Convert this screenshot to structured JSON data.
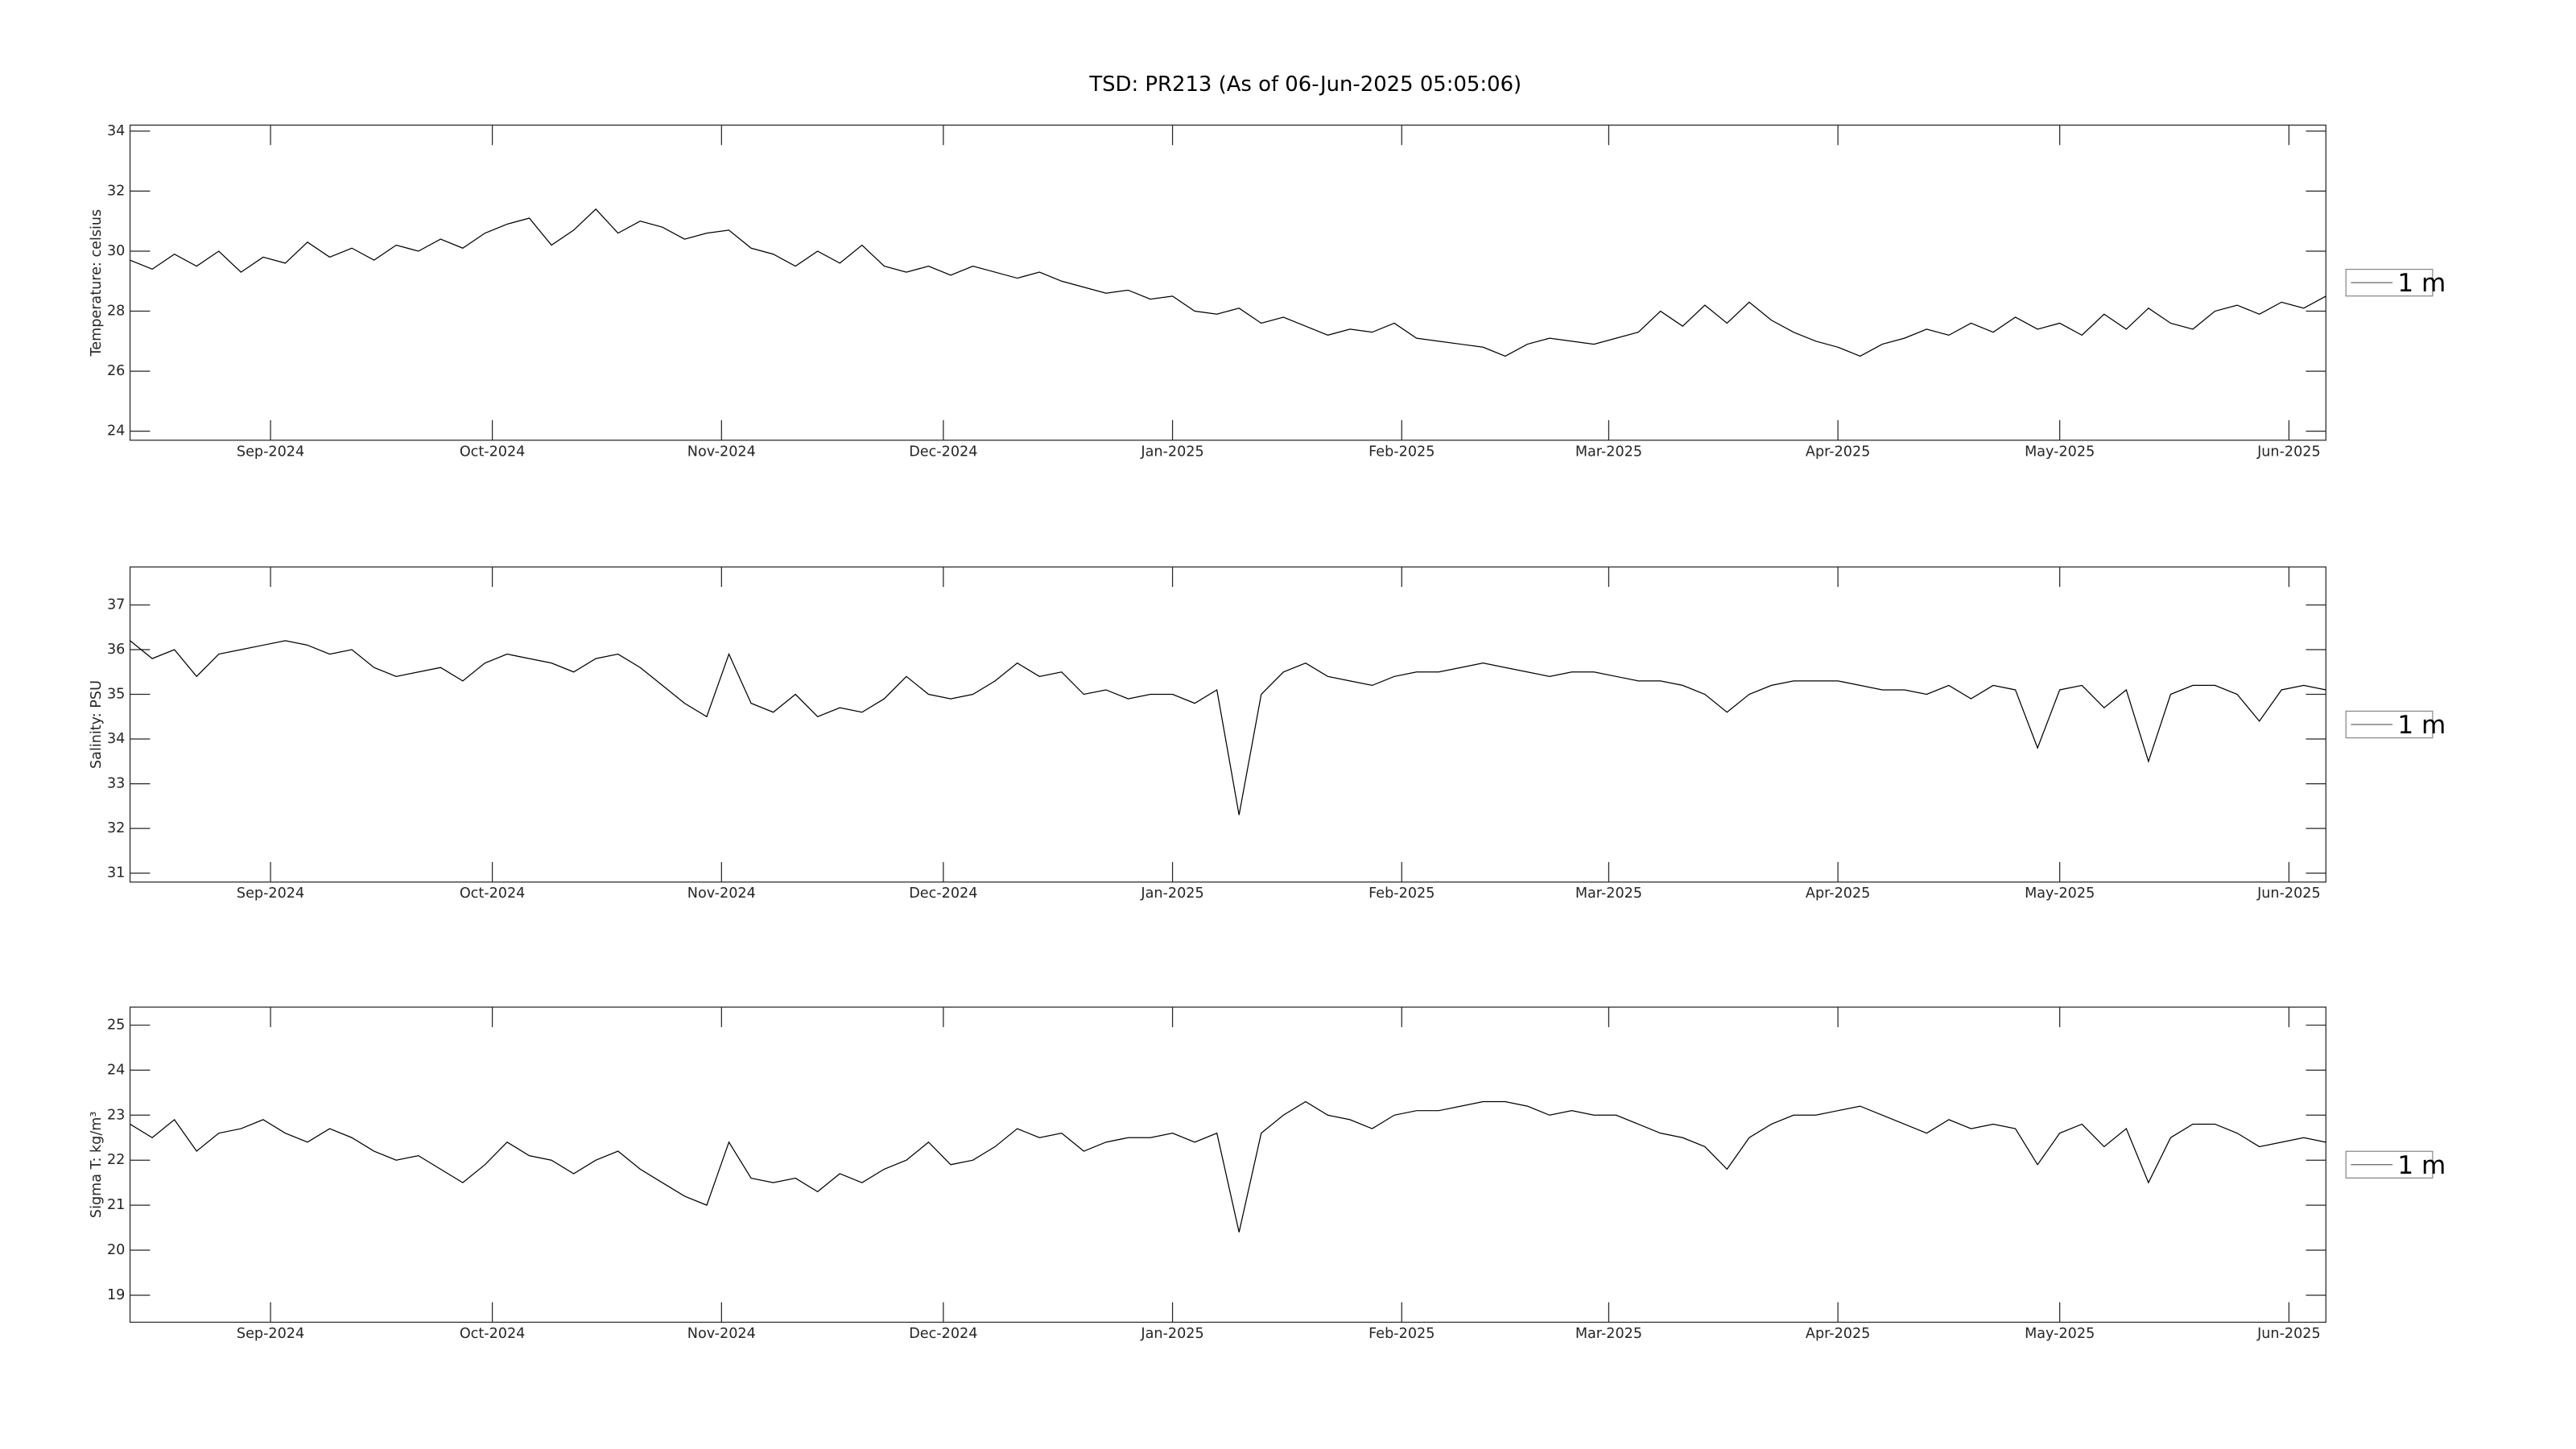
{
  "title": "TSD: PR213 (As of 06-Jun-2025 05:05:06)",
  "chart_data": [
    {
      "type": "line",
      "ylabel": "Temperature:  celsius",
      "xlim": [
        "2024-08-13",
        "2025-06-06"
      ],
      "xticks": [
        {
          "value": "2024-09-01",
          "label": "Sep-2024"
        },
        {
          "value": "2024-10-01",
          "label": "Oct-2024"
        },
        {
          "value": "2024-11-01",
          "label": "Nov-2024"
        },
        {
          "value": "2024-12-01",
          "label": "Dec-2024"
        },
        {
          "value": "2025-01-01",
          "label": "Jan-2025"
        },
        {
          "value": "2025-02-01",
          "label": "Feb-2025"
        },
        {
          "value": "2025-03-01",
          "label": "Mar-2025"
        },
        {
          "value": "2025-04-01",
          "label": "Apr-2025"
        },
        {
          "value": "2025-05-01",
          "label": "May-2025"
        },
        {
          "value": "2025-06-01",
          "label": "Jun-2025"
        }
      ],
      "ylim": [
        23.7,
        34.2
      ],
      "yticks": [
        24,
        26,
        28,
        30,
        32,
        34
      ],
      "grid": false,
      "legend": "right",
      "series": [
        {
          "name": "1 m",
          "color": "#000000",
          "values": [
            29.7,
            29.4,
            29.9,
            29.5,
            30.0,
            29.3,
            29.8,
            29.6,
            30.3,
            29.8,
            30.1,
            29.7,
            30.2,
            30.0,
            30.4,
            30.1,
            30.6,
            30.9,
            31.1,
            30.2,
            30.7,
            31.4,
            30.6,
            31.0,
            30.8,
            30.4,
            30.6,
            30.7,
            30.1,
            29.9,
            29.5,
            30.0,
            29.6,
            30.2,
            29.5,
            29.3,
            29.5,
            29.2,
            29.5,
            29.3,
            29.1,
            29.3,
            29.0,
            28.8,
            28.6,
            28.7,
            28.4,
            28.5,
            28.0,
            27.9,
            28.1,
            27.6,
            27.8,
            27.5,
            27.2,
            27.4,
            27.3,
            27.6,
            27.1,
            27.0,
            26.9,
            26.8,
            26.5,
            26.9,
            27.1,
            27.0,
            26.9,
            27.1,
            27.3,
            28.0,
            27.5,
            28.2,
            27.6,
            28.3,
            27.7,
            27.3,
            27.0,
            26.8,
            26.5,
            26.9,
            27.1,
            27.4,
            27.2,
            27.6,
            27.3,
            27.8,
            27.4,
            27.6,
            27.2,
            27.9,
            27.4,
            28.1,
            27.6,
            27.4,
            28.0,
            28.2,
            27.9,
            28.3,
            28.1,
            28.5
          ]
        }
      ]
    },
    {
      "type": "line",
      "ylabel": "Salinity:  PSU",
      "xlim": [
        "2024-08-13",
        "2025-06-06"
      ],
      "xticks": [
        {
          "value": "2024-09-01",
          "label": "Sep-2024"
        },
        {
          "value": "2024-10-01",
          "label": "Oct-2024"
        },
        {
          "value": "2024-11-01",
          "label": "Nov-2024"
        },
        {
          "value": "2024-12-01",
          "label": "Dec-2024"
        },
        {
          "value": "2025-01-01",
          "label": "Jan-2025"
        },
        {
          "value": "2025-02-01",
          "label": "Feb-2025"
        },
        {
          "value": "2025-03-01",
          "label": "Mar-2025"
        },
        {
          "value": "2025-04-01",
          "label": "Apr-2025"
        },
        {
          "value": "2025-05-01",
          "label": "May-2025"
        },
        {
          "value": "2025-06-01",
          "label": "Jun-2025"
        }
      ],
      "ylim": [
        30.8,
        37.85
      ],
      "yticks": [
        31,
        32,
        33,
        34,
        35,
        36,
        37
      ],
      "grid": false,
      "legend": "right",
      "series": [
        {
          "name": "1 m",
          "color": "#000000",
          "values": [
            36.2,
            35.8,
            36.0,
            35.4,
            35.9,
            36.0,
            36.1,
            36.2,
            36.1,
            35.9,
            36.0,
            35.6,
            35.4,
            35.5,
            35.6,
            35.3,
            35.7,
            35.9,
            35.8,
            35.7,
            35.5,
            35.8,
            35.9,
            35.6,
            35.2,
            34.8,
            34.5,
            35.9,
            34.8,
            34.6,
            35.0,
            34.5,
            34.7,
            34.6,
            34.9,
            35.4,
            35.0,
            34.9,
            35.0,
            35.3,
            35.7,
            35.4,
            35.5,
            35.0,
            35.1,
            34.9,
            35.0,
            35.0,
            34.8,
            35.1,
            32.3,
            35.0,
            35.5,
            35.7,
            35.4,
            35.3,
            35.2,
            35.4,
            35.5,
            35.5,
            35.6,
            35.7,
            35.6,
            35.5,
            35.4,
            35.5,
            35.5,
            35.4,
            35.3,
            35.3,
            35.2,
            35.0,
            34.6,
            35.0,
            35.2,
            35.3,
            35.3,
            35.3,
            35.2,
            35.1,
            35.1,
            35.0,
            35.2,
            34.9,
            35.2,
            35.1,
            33.8,
            35.1,
            35.2,
            34.7,
            35.1,
            33.5,
            35.0,
            35.2,
            35.2,
            35.0,
            34.4,
            35.1,
            35.2,
            35.1
          ]
        }
      ]
    },
    {
      "type": "line",
      "ylabel": "Sigma T:  kg/m³",
      "xlim": [
        "2024-08-13",
        "2025-06-06"
      ],
      "xticks": [
        {
          "value": "2024-09-01",
          "label": "Sep-2024"
        },
        {
          "value": "2024-10-01",
          "label": "Oct-2024"
        },
        {
          "value": "2024-11-01",
          "label": "Nov-2024"
        },
        {
          "value": "2024-12-01",
          "label": "Dec-2024"
        },
        {
          "value": "2025-01-01",
          "label": "Jan-2025"
        },
        {
          "value": "2025-02-01",
          "label": "Feb-2025"
        },
        {
          "value": "2025-03-01",
          "label": "Mar-2025"
        },
        {
          "value": "2025-04-01",
          "label": "Apr-2025"
        },
        {
          "value": "2025-05-01",
          "label": "May-2025"
        },
        {
          "value": "2025-06-01",
          "label": "Jun-2025"
        }
      ],
      "ylim": [
        18.4,
        25.4
      ],
      "yticks": [
        19,
        20,
        21,
        22,
        23,
        24,
        25
      ],
      "grid": false,
      "legend": "right",
      "series": [
        {
          "name": "1 m",
          "color": "#000000",
          "values": [
            22.8,
            22.5,
            22.9,
            22.2,
            22.6,
            22.7,
            22.9,
            22.6,
            22.4,
            22.7,
            22.5,
            22.2,
            22.0,
            22.1,
            21.8,
            21.5,
            21.9,
            22.4,
            22.1,
            22.0,
            21.7,
            22.0,
            22.2,
            21.8,
            21.5,
            21.2,
            21.0,
            22.4,
            21.6,
            21.5,
            21.6,
            21.3,
            21.7,
            21.5,
            21.8,
            22.0,
            22.4,
            21.9,
            22.0,
            22.3,
            22.7,
            22.5,
            22.6,
            22.2,
            22.4,
            22.5,
            22.5,
            22.6,
            22.4,
            22.6,
            20.4,
            22.6,
            23.0,
            23.3,
            23.0,
            22.9,
            22.7,
            23.0,
            23.1,
            23.1,
            23.2,
            23.3,
            23.3,
            23.2,
            23.0,
            23.1,
            23.0,
            23.0,
            22.8,
            22.6,
            22.5,
            22.3,
            21.8,
            22.5,
            22.8,
            23.0,
            23.0,
            23.1,
            23.2,
            23.0,
            22.8,
            22.6,
            22.9,
            22.7,
            22.8,
            22.7,
            21.9,
            22.6,
            22.8,
            22.3,
            22.7,
            21.5,
            22.5,
            22.8,
            22.8,
            22.6,
            22.3,
            22.4,
            22.5,
            22.4
          ]
        }
      ]
    }
  ]
}
